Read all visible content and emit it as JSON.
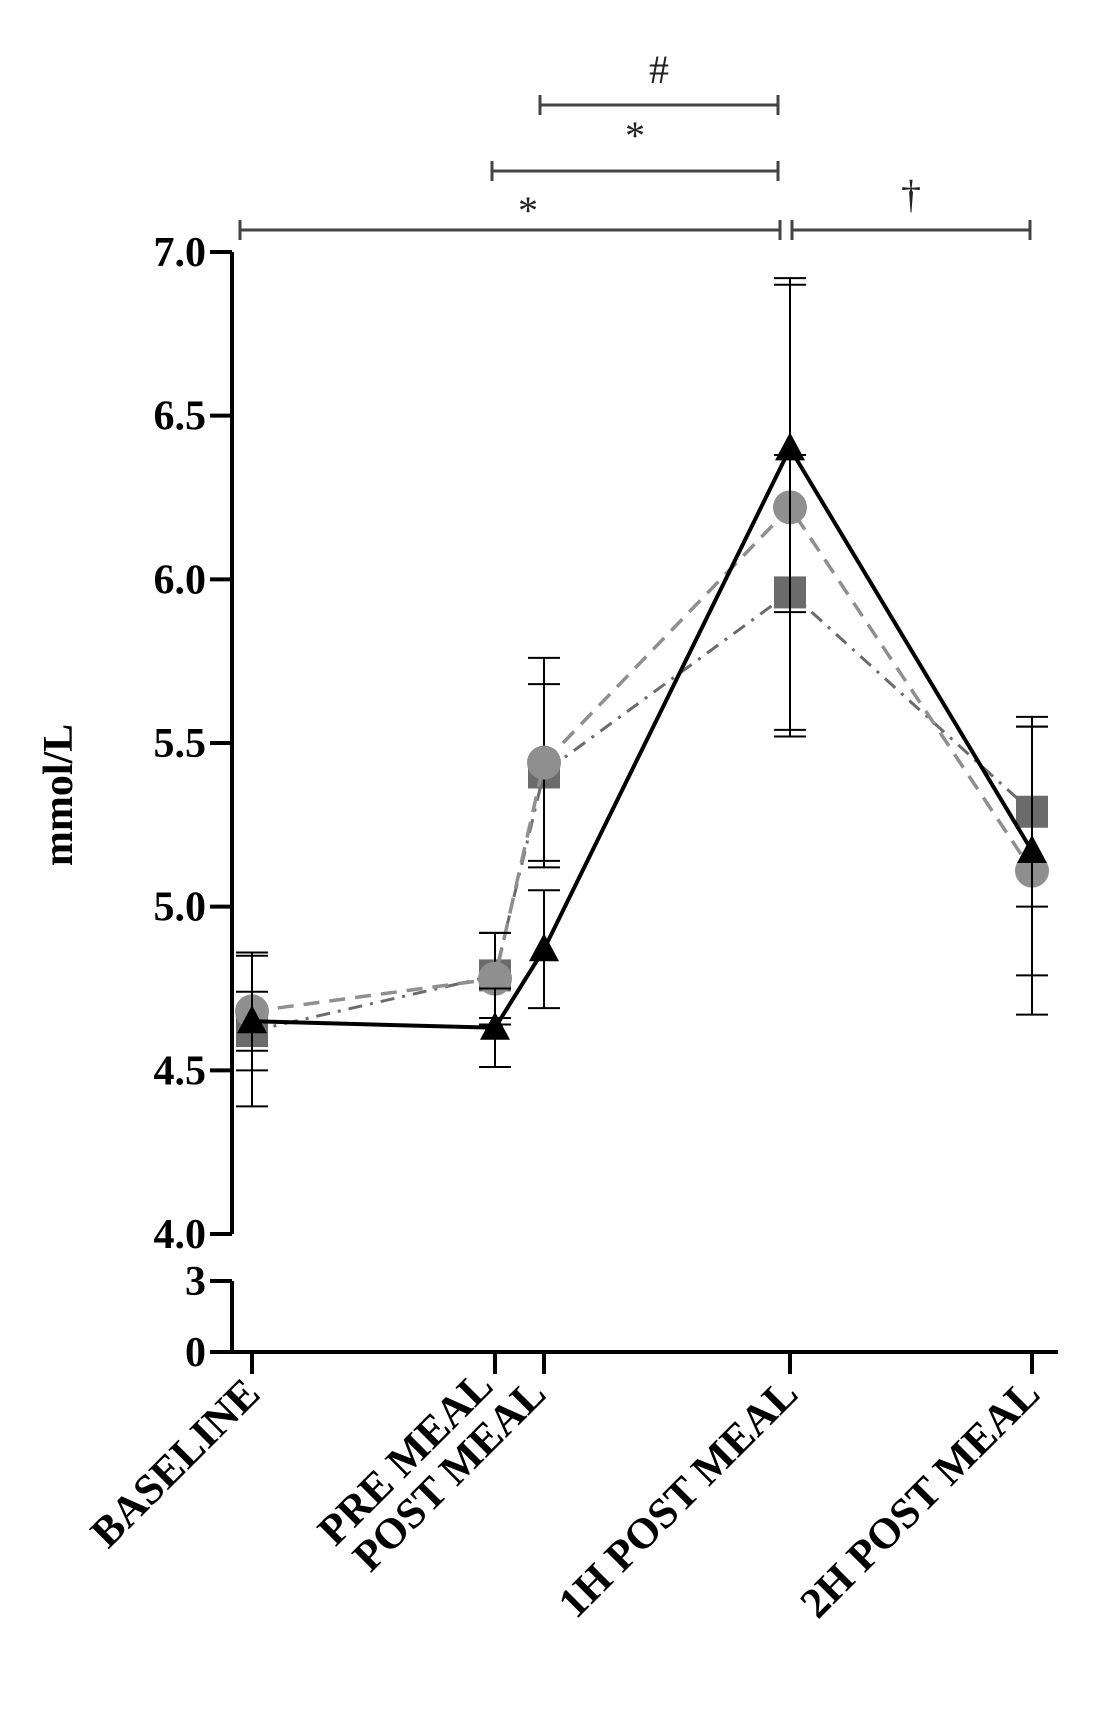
{
  "chart_data": {
    "type": "line",
    "title": "",
    "xlabel": "",
    "ylabel": "mmol/L",
    "categories": [
      "BASELINE",
      "PRE MEAL",
      "POST MEAL",
      "1H POST MEAL",
      "2H POST MEAL"
    ],
    "y_axis": {
      "ylim": [
        0,
        7.0
      ],
      "broken_axis": true,
      "lower_segment_ticks": [
        "0",
        "3"
      ],
      "upper_segment_range": [
        4.0,
        7.0
      ],
      "upper_segment_ticks": [
        "4.0",
        "4.5",
        "5.0",
        "5.5",
        "6.0",
        "6.5",
        "7.0"
      ]
    },
    "grid": false,
    "legend": "none",
    "series": [
      {
        "style": "solid black line, triangle markers",
        "color": "#000000",
        "values": [
          4.65,
          4.63,
          4.87,
          6.4,
          5.17
        ],
        "error": [
          0.09,
          0.12,
          0.18,
          0.5,
          0.38
        ]
      },
      {
        "style": "dashed gray line, circle markers",
        "color": "#8f8f8f",
        "values": [
          4.68,
          4.78,
          5.44,
          6.22,
          5.11
        ],
        "error": [
          0.18,
          0.14,
          0.32,
          0.7,
          0.44
        ]
      },
      {
        "style": "dash-dot gray line, square markers",
        "color": "#6b6b6b",
        "values": [
          4.62,
          4.79,
          5.41,
          5.96,
          5.29
        ],
        "error": [
          0.23,
          0.13,
          0.27,
          0.42,
          0.29
        ]
      }
    ],
    "significance": [
      {
        "symbol": "#",
        "from": "POST MEAL",
        "to": "1H POST MEAL"
      },
      {
        "symbol": "*",
        "from": "PRE MEAL",
        "to": "1H POST MEAL"
      },
      {
        "symbol": "*",
        "from": "BASELINE",
        "to": "1H POST MEAL"
      },
      {
        "symbol": "†",
        "from": "1H POST MEAL",
        "to": "2H POST MEAL"
      }
    ]
  }
}
